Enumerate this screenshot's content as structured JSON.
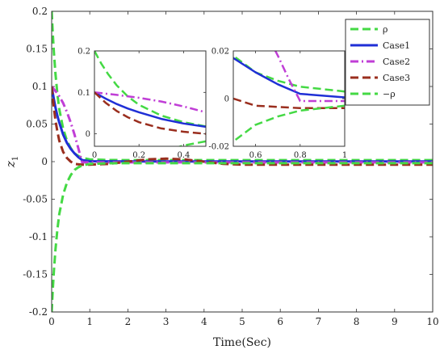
{
  "chart_data": [
    {
      "type": "line",
      "xlabel": "Time(Sec)",
      "ylabel": "z",
      "ylabel_sub": "1",
      "xlim": [
        0,
        10
      ],
      "ylim": [
        -0.2,
        0.2
      ],
      "xticks": [
        0,
        1,
        2,
        3,
        4,
        5,
        6,
        7,
        8,
        9,
        10
      ],
      "yticks": [
        -0.2,
        -0.15,
        -0.1,
        -0.05,
        0,
        0.05,
        0.1,
        0.15,
        0.2
      ],
      "ytick_labels": [
        "-0.2",
        "-0.15",
        "-0.1",
        "-0.05",
        "0",
        "0.05",
        "0.1",
        "0.15",
        "0.2"
      ],
      "grid": false,
      "legend": "top-right",
      "series": [
        {
          "name": "ρ",
          "color": "#44d944",
          "dash": "dashed",
          "x": [
            0,
            0.03,
            0.06,
            0.1,
            0.15,
            0.2,
            0.3,
            0.4,
            0.5,
            0.6,
            0.7,
            0.8,
            1.0,
            1.5,
            2,
            3,
            4,
            5,
            6,
            7,
            8,
            9,
            10
          ],
          "y": [
            0.2,
            0.17,
            0.145,
            0.117,
            0.09,
            0.07,
            0.044,
            0.028,
            0.018,
            0.011,
            0.0075,
            0.005,
            0.003,
            0.0022,
            0.002,
            0.002,
            0.002,
            0.002,
            0.002,
            0.002,
            0.002,
            0.002,
            0.002
          ]
        },
        {
          "name": "Case1",
          "color": "#1f2fd6",
          "dash": "solid",
          "x": [
            0,
            0.05,
            0.1,
            0.15,
            0.2,
            0.3,
            0.4,
            0.5,
            0.6,
            0.7,
            0.8,
            1,
            2,
            3,
            4,
            5,
            6,
            7,
            8,
            9,
            10
          ],
          "y": [
            0.1,
            0.085,
            0.072,
            0.061,
            0.052,
            0.036,
            0.025,
            0.017,
            0.011,
            0.006,
            0.002,
            0.0005,
            0.0002,
            0.0002,
            0.0002,
            0.0002,
            0.0002,
            0.0002,
            0.0002,
            0.0002,
            0.0002
          ]
        },
        {
          "name": "Case2",
          "color": "#c03ed6",
          "dash": "dash-dot",
          "x": [
            0,
            0.1,
            0.2,
            0.3,
            0.4,
            0.5,
            0.6,
            0.7,
            0.75,
            0.8,
            1,
            2,
            3,
            4,
            5,
            6,
            7,
            8,
            9,
            10
          ],
          "y": [
            0.1,
            0.094,
            0.087,
            0.078,
            0.066,
            0.052,
            0.036,
            0.018,
            0.008,
            -0.001,
            -0.001,
            -0.001,
            -0.001,
            -0.001,
            -0.001,
            -0.001,
            -0.001,
            -0.001,
            -0.001,
            -0.001
          ]
        },
        {
          "name": "Case3",
          "color": "#9a2e1e",
          "dash": "dashed",
          "x": [
            0,
            0.05,
            0.1,
            0.15,
            0.2,
            0.3,
            0.4,
            0.5,
            0.6,
            0.8,
            1,
            1.5,
            2,
            2.5,
            3,
            3.5,
            4,
            4.5,
            5,
            6,
            7,
            8,
            9,
            10
          ],
          "y": [
            0.1,
            0.075,
            0.055,
            0.04,
            0.028,
            0.013,
            0.005,
            0.0,
            -0.003,
            -0.004,
            -0.004,
            -0.003,
            0.0,
            0.003,
            0.004,
            0.003,
            0.0,
            -0.003,
            -0.004,
            -0.004,
            -0.004,
            -0.004,
            -0.004,
            -0.004
          ]
        },
        {
          "name": "−ρ",
          "color": "#44d944",
          "dash": "dashed",
          "x": [
            0,
            0.03,
            0.06,
            0.1,
            0.15,
            0.2,
            0.3,
            0.4,
            0.5,
            0.6,
            0.7,
            0.8,
            1.0,
            1.5,
            2,
            3,
            4,
            5,
            6,
            7,
            8,
            9,
            10
          ],
          "y": [
            -0.2,
            -0.17,
            -0.145,
            -0.117,
            -0.09,
            -0.07,
            -0.044,
            -0.028,
            -0.018,
            -0.011,
            -0.0075,
            -0.005,
            -0.003,
            -0.0022,
            -0.002,
            -0.002,
            -0.002,
            -0.002,
            -0.002,
            -0.002,
            -0.002,
            -0.002,
            -0.002
          ]
        }
      ]
    },
    {
      "type": "line",
      "xlim": [
        0,
        0.5
      ],
      "ylim": [
        -0.03,
        0.2
      ],
      "xticks": [
        0,
        0.2,
        0.4
      ],
      "xtick_labels": [
        "0",
        "0.2",
        "0.4"
      ],
      "yticks": [
        0,
        0.1,
        0.2
      ],
      "ytick_labels": [
        "0",
        "0.1",
        "0.2"
      ]
    },
    {
      "type": "line",
      "xlim": [
        0.5,
        1
      ],
      "ylim": [
        -0.02,
        0.02
      ],
      "xticks": [
        0.6,
        0.8,
        1
      ],
      "xtick_labels": [
        "0.6",
        "0.8",
        "1"
      ],
      "yticks": [
        -0.02,
        0,
        0.02
      ],
      "ytick_labels": [
        "-0.02",
        "0",
        "0.02"
      ]
    }
  ]
}
